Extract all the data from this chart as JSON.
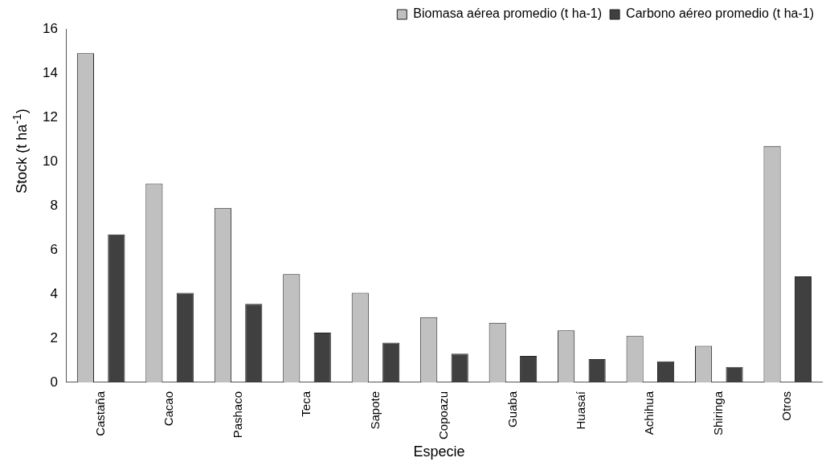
{
  "chart_data": {
    "type": "bar",
    "xlabel": "Especie",
    "ylabel": "Stock (t ha$^{-1}$)",
    "categories": [
      "Castaña",
      "Cacao",
      "Pashaco",
      "Teca",
      "Sapote",
      "Copoazu",
      "Guaba",
      "Huasaí",
      "Achihua",
      "Shiringa",
      "Otros"
    ],
    "series": [
      {
        "name": "Biomasa aérea promedio (t ha-1)",
        "color": "#c0c0c0",
        "values": [
          14.9,
          9.0,
          7.9,
          4.9,
          4.05,
          2.95,
          2.7,
          2.35,
          2.1,
          1.65,
          10.7
        ]
      },
      {
        "name": "Carbono aéreo promedio (t ha-1)",
        "color": "#404040",
        "values": [
          6.7,
          4.05,
          3.55,
          2.25,
          1.8,
          1.3,
          1.2,
          1.05,
          0.95,
          0.7,
          4.8
        ]
      }
    ],
    "ylim": [
      0,
      16
    ],
    "yticks": [
      0,
      2,
      4,
      6,
      8,
      10,
      12,
      14,
      16
    ],
    "grid": false,
    "legend": "top right"
  }
}
